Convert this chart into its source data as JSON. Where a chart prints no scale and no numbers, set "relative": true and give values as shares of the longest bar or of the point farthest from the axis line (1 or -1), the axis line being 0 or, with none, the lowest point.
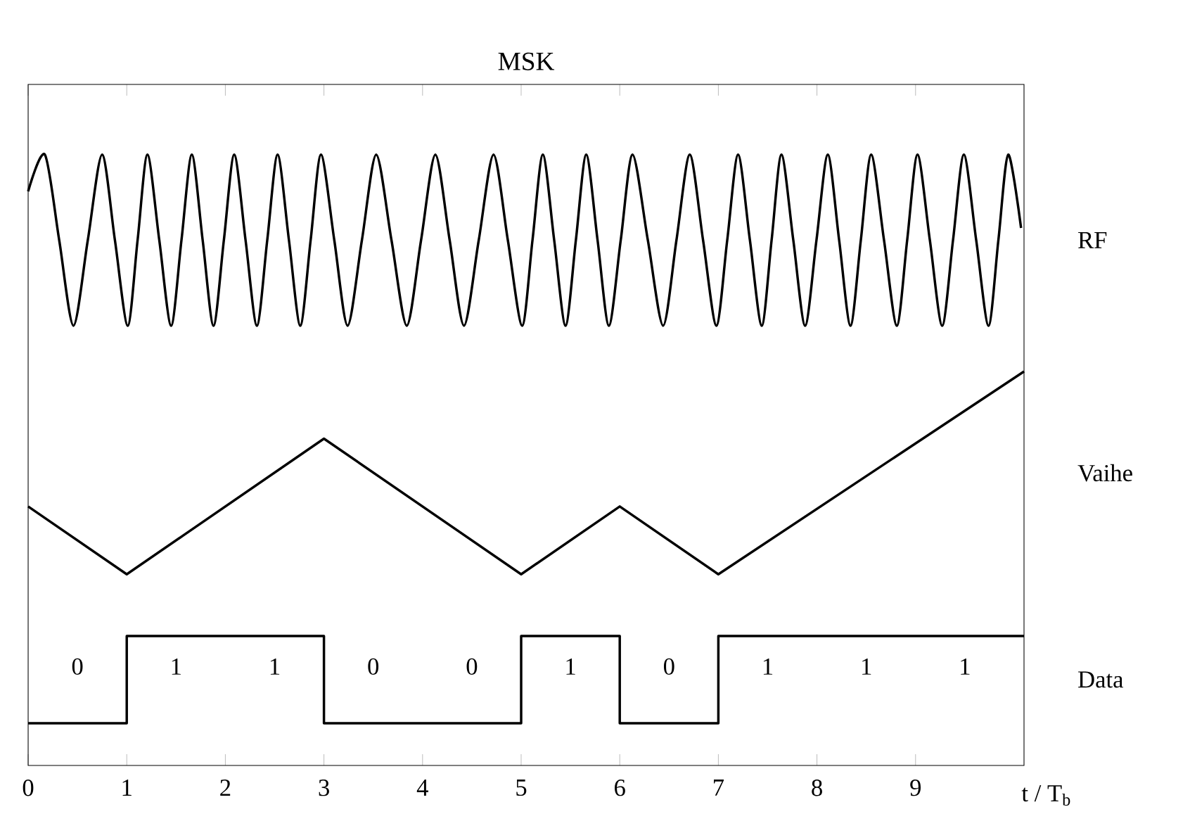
{
  "chart_data": {
    "type": "line",
    "title": "MSK",
    "xlabel": "t / T$_{b}$",
    "relative": true,
    "xlim": [
      0,
      10.1
    ],
    "xticks": [
      0,
      1,
      2,
      3,
      4,
      5,
      6,
      7,
      8,
      9
    ],
    "series": [
      {
        "name": "RF",
        "color": "#000000",
        "x": [
          0,
          0.17,
          0.315,
          0.46,
          0.605,
          0.75,
          0.88,
          1.01,
          1.11,
          1.21,
          1.33,
          1.45,
          1.555,
          1.66,
          1.77,
          1.88,
          1.985,
          2.09,
          2.205,
          2.32,
          2.425,
          2.53,
          2.645,
          2.76,
          2.865,
          2.97,
          3.105,
          3.24,
          3.385,
          3.53,
          3.685,
          3.84,
          3.985,
          4.13,
          4.275,
          4.42,
          4.57,
          4.72,
          4.865,
          5.01,
          5.115,
          5.22,
          5.335,
          5.45,
          5.555,
          5.66,
          5.775,
          5.89,
          6.01,
          6.13,
          6.285,
          6.44,
          6.575,
          6.71,
          6.845,
          6.98,
          7.09,
          7.2,
          7.32,
          7.44,
          7.54,
          7.64,
          7.76,
          7.88,
          7.995,
          8.11,
          8.225,
          8.34,
          8.445,
          8.55,
          8.68,
          8.81,
          8.915,
          9.02,
          9.145,
          9.27,
          9.38,
          9.49,
          9.615,
          9.74,
          9.84,
          9.94,
          10.07
        ],
        "values": [
          0.94,
          1,
          0.86,
          0.72,
          0.86,
          1,
          0.86,
          0.72,
          0.86,
          1,
          0.86,
          0.72,
          0.86,
          1,
          0.86,
          0.72,
          0.86,
          1,
          0.86,
          0.72,
          0.86,
          1,
          0.86,
          0.72,
          0.86,
          1,
          0.86,
          0.72,
          0.86,
          1,
          0.86,
          0.72,
          0.86,
          1,
          0.86,
          0.72,
          0.86,
          1,
          0.86,
          0.72,
          0.86,
          1,
          0.86,
          0.72,
          0.86,
          1,
          0.86,
          0.72,
          0.86,
          1,
          0.86,
          0.72,
          0.86,
          1,
          0.86,
          0.72,
          0.86,
          1,
          0.86,
          0.72,
          0.86,
          1,
          0.86,
          0.72,
          0.86,
          1,
          0.86,
          0.72,
          0.86,
          1,
          0.86,
          0.72,
          0.86,
          1,
          0.86,
          0.72,
          0.86,
          1,
          0.86,
          0.72,
          0.86,
          1,
          0.88
        ]
      },
      {
        "name": "Vaihe",
        "color": "#000000",
        "x": [
          0,
          1,
          3,
          5,
          6,
          7,
          10.1
        ],
        "values": [
          0.424,
          0.313,
          0.535,
          0.313,
          0.424,
          0.313,
          0.645
        ]
      },
      {
        "name": "Data",
        "type": "step",
        "color": "#000000",
        "x": [
          0,
          1,
          2,
          3,
          4,
          5,
          6,
          7,
          8,
          9,
          10.1
        ],
        "values": [
          0.069,
          0.212,
          0.212,
          0.069,
          0.069,
          0.212,
          0.069,
          0.212,
          0.212,
          0.212,
          0.212
        ]
      }
    ],
    "annotations": [
      "0",
      "1",
      "1",
      "0",
      "0",
      "1",
      "0",
      "1",
      "1",
      "1"
    ]
  }
}
